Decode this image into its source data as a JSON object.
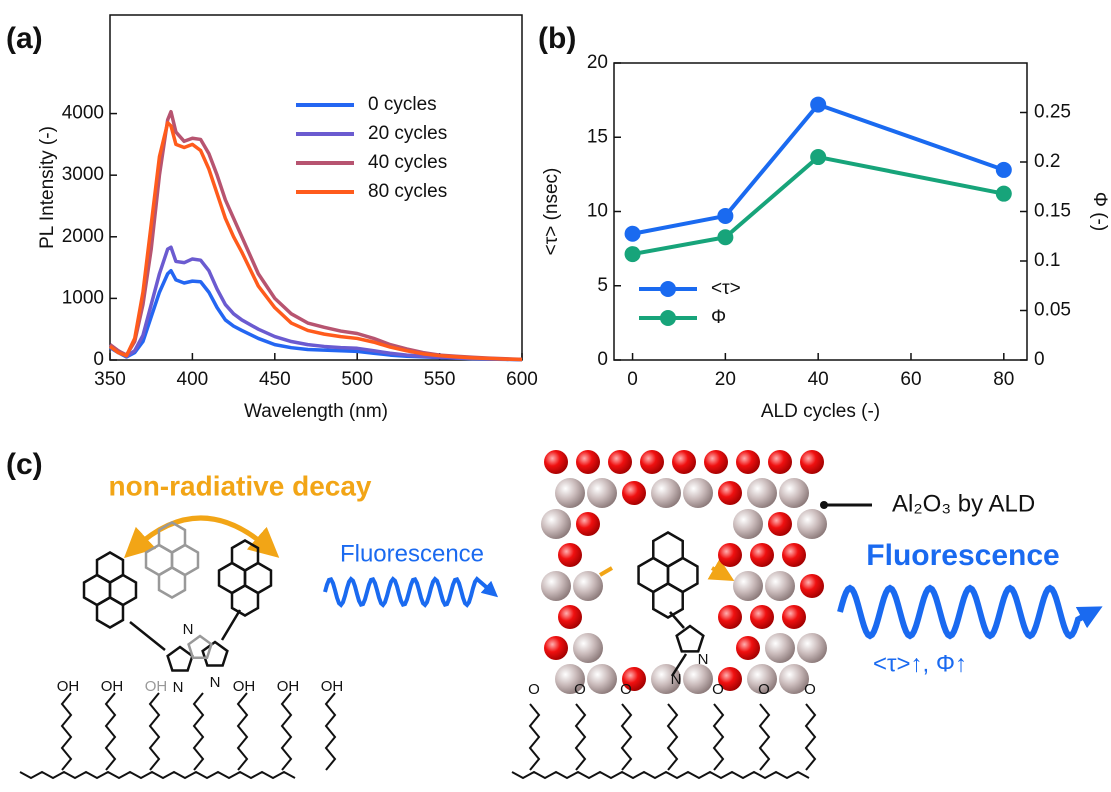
{
  "panel_labels": [
    "(a)",
    "(b)",
    "(c)"
  ],
  "chart_data": [
    {
      "type": "line",
      "x_label": "Wavelength (nm)",
      "y_label": "PL Intensity (-)",
      "x": [
        350,
        355,
        360,
        365,
        370,
        375,
        380,
        385,
        387,
        390,
        395,
        400,
        405,
        410,
        415,
        420,
        425,
        430,
        440,
        450,
        460,
        470,
        480,
        490,
        500,
        510,
        520,
        530,
        540,
        550,
        560,
        570,
        580,
        590,
        600
      ],
      "xlim": [
        350,
        600
      ],
      "xticks": [
        350,
        400,
        450,
        500,
        550,
        600
      ],
      "ylim": [
        0,
        5600
      ],
      "yticks": [
        0,
        1000,
        2000,
        3000,
        4000
      ],
      "legend": "upper right",
      "series": [
        {
          "name": "0 cycles",
          "color": "#2466f2",
          "values": [
            200,
            120,
            50,
            120,
            300,
            700,
            1100,
            1400,
            1450,
            1300,
            1250,
            1280,
            1270,
            1100,
            850,
            650,
            550,
            480,
            350,
            250,
            200,
            170,
            160,
            150,
            140,
            110,
            80,
            60,
            50,
            40,
            30,
            20,
            15,
            10,
            5
          ]
        },
        {
          "name": "20 cycles",
          "color": "#6b5bd0",
          "values": [
            250,
            150,
            60,
            150,
            400,
            900,
            1400,
            1800,
            1830,
            1600,
            1580,
            1640,
            1620,
            1450,
            1150,
            900,
            750,
            650,
            500,
            380,
            300,
            250,
            220,
            200,
            190,
            150,
            110,
            80,
            60,
            45,
            35,
            25,
            18,
            12,
            8
          ]
        },
        {
          "name": "40 cycles",
          "color": "#b75470",
          "values": [
            250,
            150,
            80,
            300,
            900,
            1800,
            3000,
            3900,
            4030,
            3700,
            3550,
            3600,
            3580,
            3350,
            3000,
            2600,
            2300,
            2000,
            1400,
            1000,
            750,
            600,
            530,
            470,
            430,
            350,
            250,
            180,
            120,
            80,
            60,
            45,
            30,
            20,
            10
          ]
        },
        {
          "name": "80 cycles",
          "color": "#ff5b1c",
          "values": [
            220,
            120,
            70,
            350,
            1100,
            2200,
            3300,
            3850,
            3800,
            3500,
            3450,
            3500,
            3400,
            3100,
            2700,
            2300,
            2000,
            1750,
            1200,
            850,
            600,
            480,
            420,
            380,
            350,
            290,
            210,
            150,
            100,
            70,
            50,
            35,
            25,
            15,
            8
          ]
        }
      ]
    },
    {
      "type": "line",
      "markers": true,
      "x_label": "ALD cycles (-)",
      "y_label": "<τ> (nsec)",
      "y2_label": "Φ (-)",
      "x": [
        0,
        20,
        40,
        80
      ],
      "xlim": [
        -4,
        85
      ],
      "xticks": [
        0,
        20,
        40,
        60,
        80
      ],
      "ylim": [
        0,
        20
      ],
      "yticks": [
        0,
        5,
        10,
        15,
        20
      ],
      "y2lim": [
        0,
        0.3
      ],
      "y2ticks": [
        0,
        0.05,
        0.1,
        0.15,
        0.2,
        0.25
      ],
      "legend": "lower left",
      "series": [
        {
          "name": "<τ>",
          "color": "#1a6af0",
          "values": [
            8.5,
            9.7,
            17.2,
            12.8
          ]
        },
        {
          "name": "Φ",
          "color": "#17a47a",
          "values": [
            0.107,
            0.124,
            0.205,
            0.168
          ],
          "axis": "y2"
        }
      ]
    }
  ],
  "diagram": {
    "nonradiative_label": "non-radiative decay",
    "fluorescence_left": "Fluorescence",
    "fluorescence_right": "Fluorescence",
    "coating_label": "Al₂O₃ by ALD",
    "improvement_label": "<τ>↑, Φ↑",
    "hydroxyl_label": "OH",
    "ether_label": "O",
    "nitrogen_label": "N"
  }
}
